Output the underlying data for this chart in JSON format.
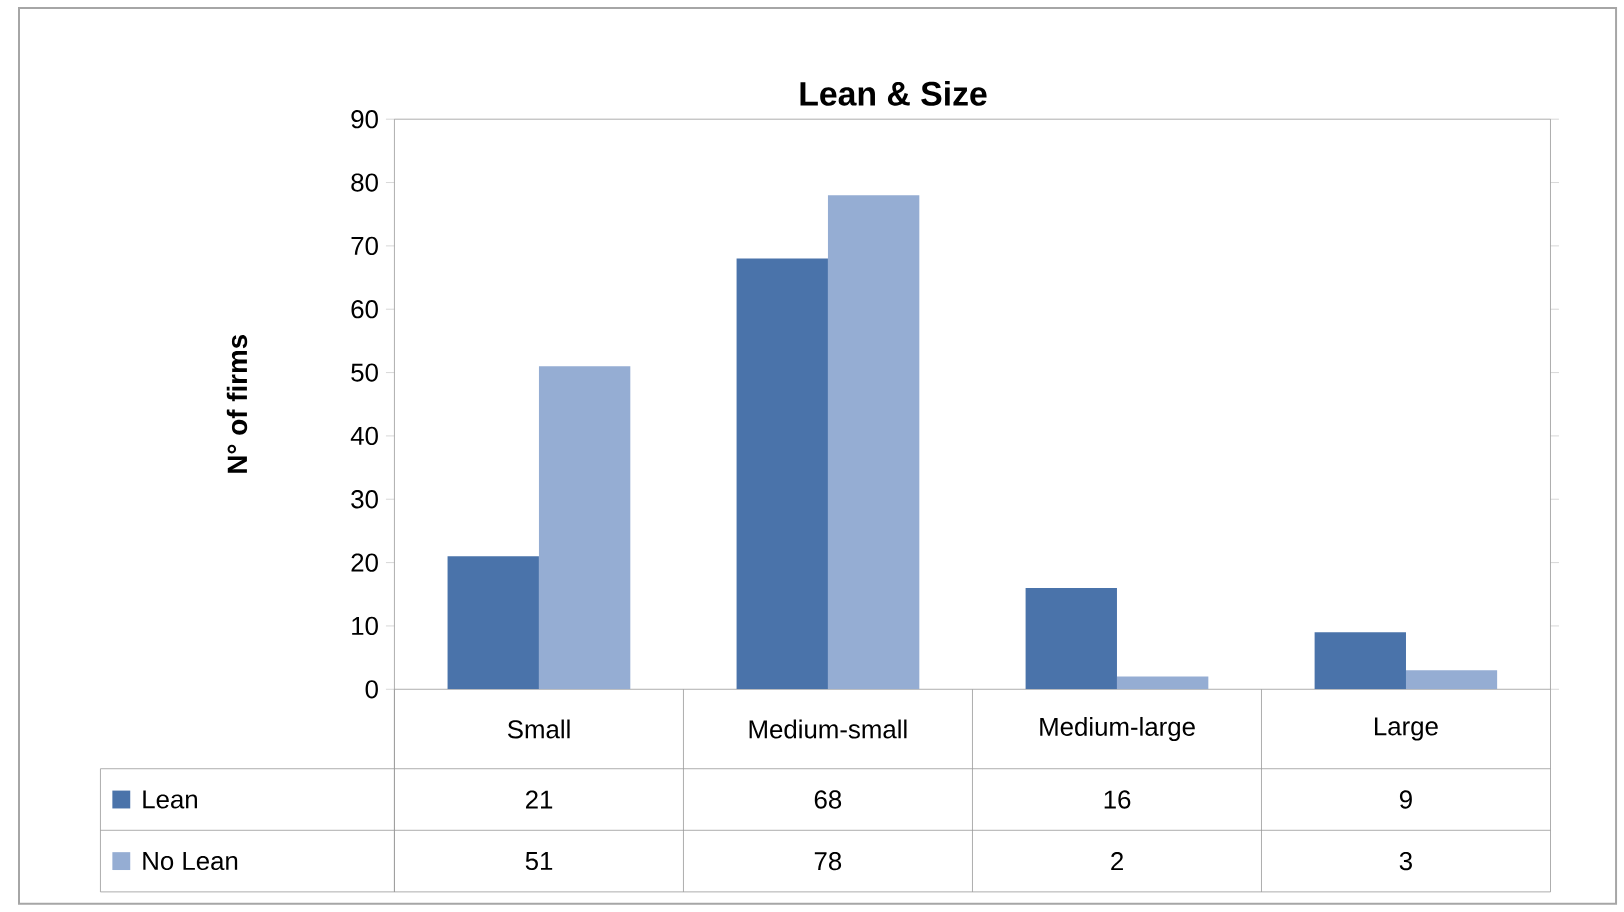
{
  "chart_data": {
    "type": "bar",
    "title": "Lean & Size",
    "ylabel": "N° of firms",
    "categories": [
      "Small",
      "Medium-small",
      "Medium-large",
      "Large"
    ],
    "series": [
      {
        "name": "Lean",
        "color": "#4a73aa",
        "values": [
          21,
          68,
          16,
          9
        ]
      },
      {
        "name": "No Lean",
        "color": "#95add3",
        "values": [
          51,
          78,
          2,
          3
        ]
      }
    ],
    "ylim": [
      0,
      90
    ],
    "yticks": [
      0,
      10,
      20,
      30,
      40,
      50,
      60,
      70,
      80,
      90
    ],
    "data_labels": true,
    "legend": "bottom"
  }
}
